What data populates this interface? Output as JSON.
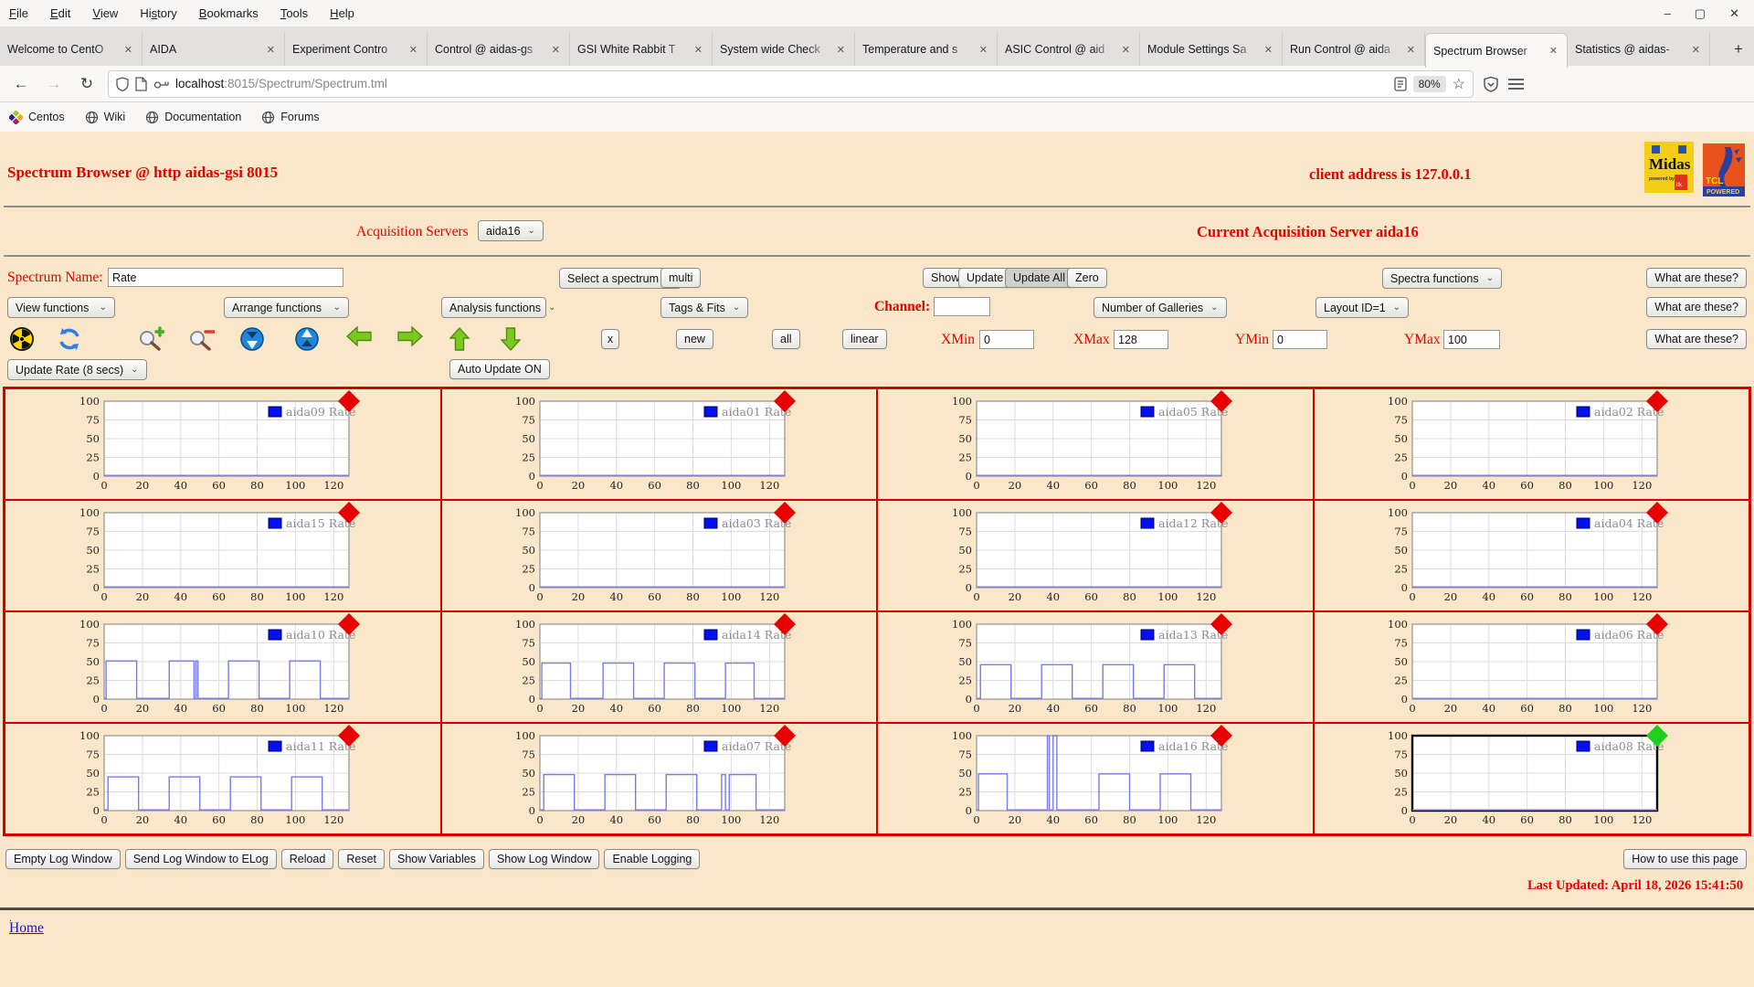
{
  "browser": {
    "menu": [
      {
        "label": "File",
        "accel": 0
      },
      {
        "label": "Edit",
        "accel": 0
      },
      {
        "label": "View",
        "accel": 0
      },
      {
        "label": "History",
        "accel": 2
      },
      {
        "label": "Bookmarks",
        "accel": 0
      },
      {
        "label": "Tools",
        "accel": 0
      },
      {
        "label": "Help",
        "accel": 0
      }
    ],
    "window_controls": [
      {
        "name": "minimize-button",
        "glyph": "–"
      },
      {
        "name": "maximize-button",
        "glyph": "▢"
      },
      {
        "name": "close-button",
        "glyph": "✕"
      }
    ],
    "tabs": [
      {
        "title": "Welcome to CentO",
        "active": false
      },
      {
        "title": "AIDA",
        "active": false
      },
      {
        "title": "Experiment Contro",
        "active": false
      },
      {
        "title": "Control @ aidas-gs",
        "active": false
      },
      {
        "title": "GSI White Rabbit T",
        "active": false
      },
      {
        "title": "System wide Check",
        "active": false
      },
      {
        "title": "Temperature and s",
        "active": false
      },
      {
        "title": "ASIC Control @ aid",
        "active": false
      },
      {
        "title": "Module Settings Sa",
        "active": false
      },
      {
        "title": "Run Control @ aida",
        "active": false
      },
      {
        "title": "Spectrum Browser",
        "active": true
      },
      {
        "title": "Statistics @ aidas-",
        "active": false
      }
    ],
    "tab_close_glyph": "✕",
    "new_tab_button": "+",
    "nav": {
      "back": "←",
      "forward": "→",
      "reload": "↻"
    },
    "url": {
      "host": "localhost",
      "path": ":8015/Spectrum/Spectrum.tml"
    },
    "zoom_badge": "80%",
    "bookmarks": [
      {
        "label": "Centos",
        "icon": "centos-icon"
      },
      {
        "label": "Wiki",
        "icon": "globe-icon"
      },
      {
        "label": "Documentation",
        "icon": "globe-icon"
      },
      {
        "label": "Forums",
        "icon": "globe-icon"
      }
    ]
  },
  "page": {
    "title": "Spectrum Browser @ http aidas-gsi 8015",
    "client_address": "client address is 127.0.0.1",
    "acquisition_servers_label": "Acquisition Servers",
    "acquisition_server_value": "aida16",
    "current_server": "Current Acquisition Server aida16",
    "spectrum_name_label": "Spectrum Name:",
    "spectrum_name_value": "Rate",
    "select_spectrum": "Select a spectrum",
    "multi": "multi",
    "show": "Show",
    "update": "Update",
    "update_all": "Update All",
    "zero": "Zero",
    "spectra_functions": "Spectra functions",
    "what_are_these": "What are these?",
    "view_functions": "View functions",
    "arrange_functions": "Arrange functions",
    "analysis_functions": "Analysis functions",
    "tags_fits": "Tags & Fits",
    "channel_label": "Channel:",
    "channel_value": "",
    "number_of_galleries": "Number of Galleries",
    "layout_id": "Layout ID=1",
    "small_buttons": [
      "x",
      "new",
      "all",
      "linear"
    ],
    "xmin_label": "XMin",
    "xmin": "0",
    "xmax_label": "XMax",
    "xmax": "128",
    "ymin_label": "YMin",
    "ymin": "0",
    "ymax_label": "YMax",
    "ymax": "100",
    "toolbar_icons": [
      "radiation-icon",
      "refresh-icon",
      "zoom-in-icon",
      "zoom-out-icon",
      "compress-vertical-icon",
      "expand-vertical-icon",
      "shift-left-icon",
      "shift-right-icon",
      "shift-up-icon",
      "shift-down-icon"
    ],
    "update_rate": "Update Rate (8 secs)",
    "auto_update": "Auto Update ON",
    "log_buttons": [
      "Empty Log Window",
      "Send Log Window to ELog",
      "Reload",
      "Reset",
      "Show Variables",
      "Show Log Window",
      "Enable Logging"
    ],
    "how_to": "How to use this page",
    "last_updated": "Last Updated: April 18, 2026 15:41:50",
    "footer_dot": ".",
    "home_link": "Home"
  },
  "colors": {
    "page_bg": "#fae7c9",
    "accent_red": "#e60000",
    "grid_border": "#d40000",
    "trace": "#7b7be8",
    "legend_swatch": "#0010ee",
    "marker_red": "#e80000",
    "marker_green": "#1ecf1e",
    "gridline": "#dcdcdc",
    "plot_border": "#9a9a9a"
  },
  "chart_data": {
    "type": "line",
    "xlim": [
      0,
      128
    ],
    "ylim": [
      0,
      100
    ],
    "x_ticks": [
      0,
      20,
      40,
      60,
      80,
      100,
      120
    ],
    "y_ticks": [
      0,
      25,
      50,
      75,
      100
    ],
    "grid": true,
    "legend_position": "top-right",
    "columns": 4,
    "charts": [
      {
        "name": "aida09",
        "legend": "aida09 Rate",
        "marker": "red",
        "selected": false,
        "points": [
          [
            0,
            1
          ],
          [
            128,
            1
          ]
        ]
      },
      {
        "name": "aida01",
        "legend": "aida01 Rate",
        "marker": "red",
        "selected": false,
        "points": [
          [
            0,
            1
          ],
          [
            128,
            1
          ]
        ]
      },
      {
        "name": "aida05",
        "legend": "aida05 Rate",
        "marker": "red",
        "selected": false,
        "points": [
          [
            0,
            1
          ],
          [
            128,
            1
          ]
        ]
      },
      {
        "name": "aida02",
        "legend": "aida02 Rate",
        "marker": "red",
        "selected": false,
        "points": [
          [
            0,
            1
          ],
          [
            128,
            1
          ]
        ]
      },
      {
        "name": "aida15",
        "legend": "aida15 Rate",
        "marker": "red",
        "selected": false,
        "points": [
          [
            0,
            1
          ],
          [
            128,
            1
          ]
        ]
      },
      {
        "name": "aida03",
        "legend": "aida03 Rate",
        "marker": "red",
        "selected": false,
        "points": [
          [
            0,
            1
          ],
          [
            128,
            1
          ]
        ]
      },
      {
        "name": "aida12",
        "legend": "aida12 Rate",
        "marker": "red",
        "selected": false,
        "points": [
          [
            0,
            1
          ],
          [
            128,
            1
          ]
        ]
      },
      {
        "name": "aida04",
        "legend": "aida04 Rate",
        "marker": "red",
        "selected": false,
        "points": [
          [
            0,
            1
          ],
          [
            128,
            1
          ]
        ]
      },
      {
        "name": "aida10",
        "legend": "aida10 Rate",
        "marker": "red",
        "selected": false,
        "points": [
          [
            0,
            1
          ],
          [
            1,
            1
          ],
          [
            1,
            51
          ],
          [
            17,
            51
          ],
          [
            17,
            1
          ],
          [
            34,
            1
          ],
          [
            34,
            51
          ],
          [
            47,
            51
          ],
          [
            47,
            1
          ],
          [
            48,
            1
          ],
          [
            48,
            51
          ],
          [
            49,
            51
          ],
          [
            49,
            1
          ],
          [
            65,
            1
          ],
          [
            65,
            51
          ],
          [
            81,
            51
          ],
          [
            81,
            1
          ],
          [
            97,
            1
          ],
          [
            97,
            51
          ],
          [
            113,
            51
          ],
          [
            113,
            1
          ],
          [
            128,
            1
          ]
        ]
      },
      {
        "name": "aida14",
        "legend": "aida14 Rate",
        "marker": "red",
        "selected": false,
        "points": [
          [
            0,
            1
          ],
          [
            1,
            1
          ],
          [
            1,
            48
          ],
          [
            16,
            48
          ],
          [
            16,
            1
          ],
          [
            33,
            1
          ],
          [
            33,
            48
          ],
          [
            49,
            48
          ],
          [
            49,
            1
          ],
          [
            65,
            1
          ],
          [
            65,
            48
          ],
          [
            81,
            48
          ],
          [
            81,
            1
          ],
          [
            97,
            1
          ],
          [
            97,
            48
          ],
          [
            112,
            48
          ],
          [
            112,
            1
          ],
          [
            128,
            1
          ]
        ]
      },
      {
        "name": "aida13",
        "legend": "aida13 Rate",
        "marker": "red",
        "selected": false,
        "points": [
          [
            0,
            1
          ],
          [
            2,
            1
          ],
          [
            2,
            46
          ],
          [
            18,
            46
          ],
          [
            18,
            1
          ],
          [
            34,
            1
          ],
          [
            34,
            46
          ],
          [
            50,
            46
          ],
          [
            50,
            1
          ],
          [
            66,
            1
          ],
          [
            66,
            46
          ],
          [
            82,
            46
          ],
          [
            82,
            1
          ],
          [
            98,
            1
          ],
          [
            98,
            46
          ],
          [
            114,
            46
          ],
          [
            114,
            1
          ],
          [
            128,
            1
          ]
        ]
      },
      {
        "name": "aida06",
        "legend": "aida06 Rate",
        "marker": "red",
        "selected": false,
        "points": [
          [
            0,
            1
          ],
          [
            128,
            1
          ]
        ]
      },
      {
        "name": "aida11",
        "legend": "aida11 Rate",
        "marker": "red",
        "selected": false,
        "points": [
          [
            0,
            1
          ],
          [
            2,
            1
          ],
          [
            2,
            45
          ],
          [
            18,
            45
          ],
          [
            18,
            1
          ],
          [
            34,
            1
          ],
          [
            34,
            45
          ],
          [
            50,
            45
          ],
          [
            50,
            1
          ],
          [
            66,
            1
          ],
          [
            66,
            45
          ],
          [
            82,
            45
          ],
          [
            82,
            1
          ],
          [
            98,
            1
          ],
          [
            98,
            45
          ],
          [
            114,
            45
          ],
          [
            114,
            1
          ],
          [
            128,
            1
          ]
        ]
      },
      {
        "name": "aida07",
        "legend": "aida07 Rate",
        "marker": "red",
        "selected": false,
        "points": [
          [
            0,
            1
          ],
          [
            2,
            1
          ],
          [
            2,
            48
          ],
          [
            18,
            48
          ],
          [
            18,
            1
          ],
          [
            34,
            1
          ],
          [
            34,
            48
          ],
          [
            50,
            48
          ],
          [
            50,
            1
          ],
          [
            66,
            1
          ],
          [
            66,
            48
          ],
          [
            82,
            48
          ],
          [
            82,
            1
          ],
          [
            95,
            1
          ],
          [
            95,
            48
          ],
          [
            97,
            48
          ],
          [
            97,
            1
          ],
          [
            99,
            1
          ],
          [
            99,
            48
          ],
          [
            113,
            48
          ],
          [
            113,
            1
          ],
          [
            128,
            1
          ]
        ]
      },
      {
        "name": "aida16",
        "legend": "aida16 Rate",
        "marker": "red",
        "selected": false,
        "points": [
          [
            0,
            1
          ],
          [
            1,
            1
          ],
          [
            1,
            49
          ],
          [
            16,
            49
          ],
          [
            16,
            1
          ],
          [
            37,
            1
          ],
          [
            37,
            100
          ],
          [
            38,
            100
          ],
          [
            38,
            1
          ],
          [
            40,
            1
          ],
          [
            40,
            100
          ],
          [
            42,
            100
          ],
          [
            42,
            1
          ],
          [
            64,
            1
          ],
          [
            64,
            49
          ],
          [
            80,
            49
          ],
          [
            80,
            1
          ],
          [
            96,
            1
          ],
          [
            96,
            49
          ],
          [
            112,
            49
          ],
          [
            112,
            1
          ],
          [
            128,
            1
          ]
        ]
      },
      {
        "name": "aida08",
        "legend": "aida08 Rate",
        "marker": "green",
        "selected": true,
        "points": [
          [
            0,
            1
          ],
          [
            128,
            1
          ]
        ]
      }
    ]
  }
}
